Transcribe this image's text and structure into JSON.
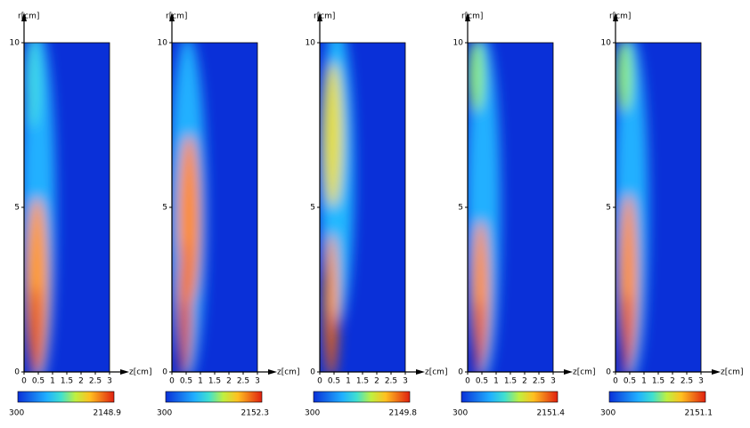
{
  "chart_data": [
    {
      "type": "heatmap",
      "xlabel": "z[cm]",
      "ylabel": "r[cm]",
      "xlim": [
        0,
        3
      ],
      "xticks": [
        0,
        0.5,
        1,
        1.5,
        2,
        2.5,
        3
      ],
      "ylim": [
        0,
        10
      ],
      "yticks": [
        0,
        5,
        10
      ],
      "colorbar": {
        "min": 300,
        "max": 2148.9
      }
    },
    {
      "type": "heatmap",
      "xlabel": "z[cm]",
      "ylabel": "r[cm]",
      "xlim": [
        0,
        3
      ],
      "xticks": [
        0,
        0.5,
        1,
        1.5,
        2,
        2.5,
        3
      ],
      "ylim": [
        0,
        10
      ],
      "yticks": [
        0,
        5,
        10
      ],
      "colorbar": {
        "min": 300,
        "max": 2152.3
      }
    },
    {
      "type": "heatmap",
      "xlabel": "z[cm]",
      "ylabel": "r[cm]",
      "xlim": [
        0,
        3
      ],
      "xticks": [
        0,
        0.5,
        1,
        1.5,
        2,
        2.5,
        3
      ],
      "ylim": [
        0,
        10
      ],
      "yticks": [
        0,
        5,
        10
      ],
      "colorbar": {
        "min": 300,
        "max": 2149.8
      }
    },
    {
      "type": "heatmap",
      "xlabel": "z[cm]",
      "ylabel": "r[cm]",
      "xlim": [
        0,
        3
      ],
      "xticks": [
        0,
        0.5,
        1,
        1.5,
        2,
        2.5,
        3
      ],
      "ylim": [
        0,
        10
      ],
      "yticks": [
        0,
        5,
        10
      ],
      "colorbar": {
        "min": 300,
        "max": 2151.4
      }
    },
    {
      "type": "heatmap",
      "xlabel": "z[cm]",
      "ylabel": "r[cm]",
      "xlim": [
        0,
        3
      ],
      "xticks": [
        0,
        0.5,
        1,
        1.5,
        2,
        2.5,
        3
      ],
      "ylim": [
        0,
        10
      ],
      "yticks": [
        0,
        5,
        10
      ],
      "colorbar": {
        "min": 300,
        "max": 2151.1
      }
    }
  ]
}
